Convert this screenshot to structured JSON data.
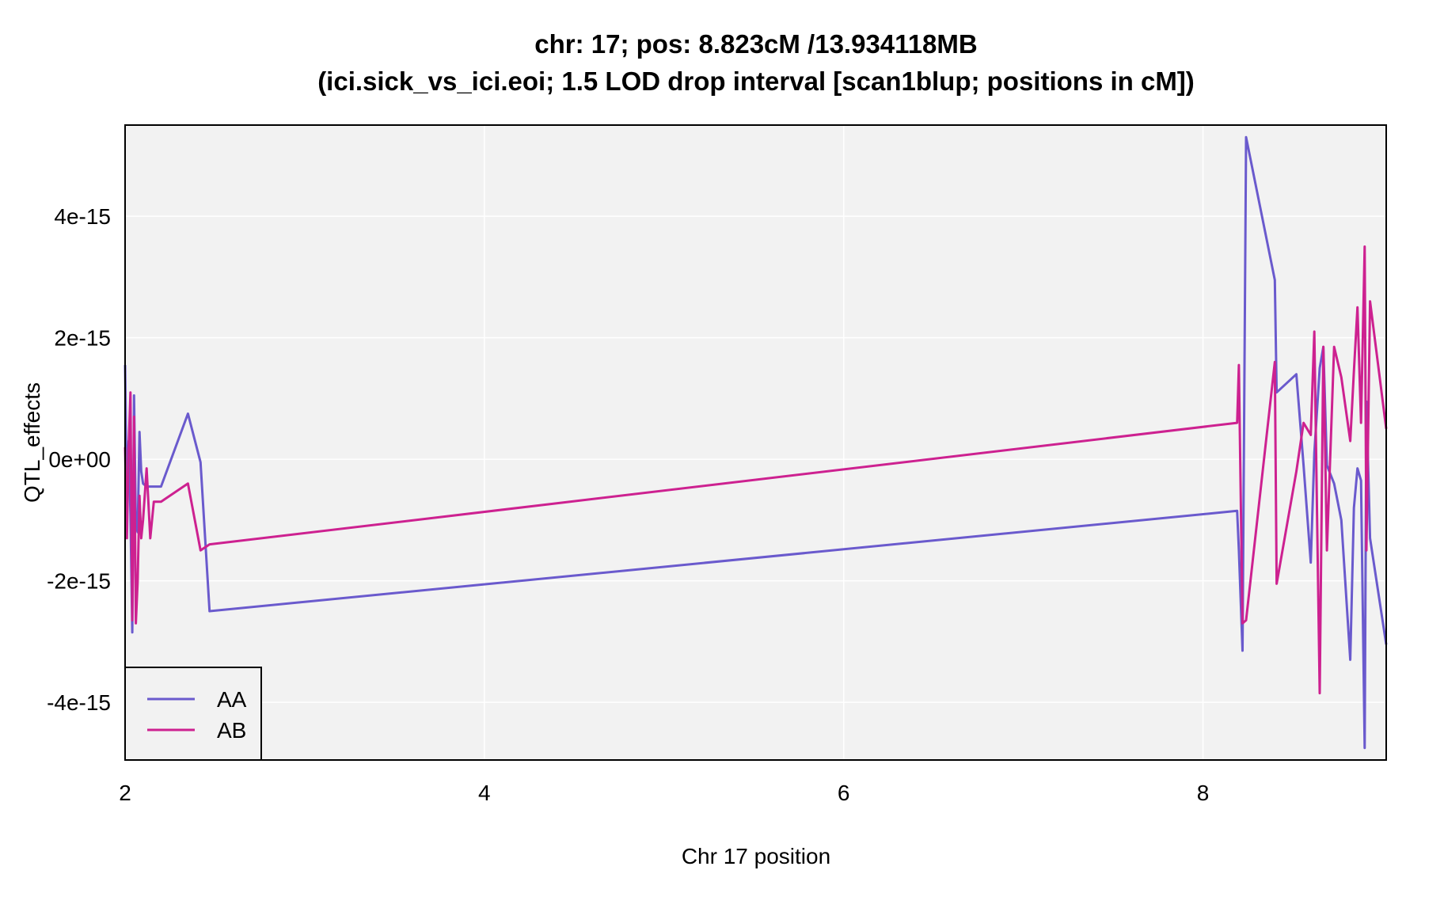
{
  "chart_data": {
    "type": "line",
    "title": "chr: 17; pos: 8.823cM /13.934118MB",
    "subtitle": "(ici.sick_vs_ici.eoi; 1.5 LOD drop interval [scan1blup; positions in cM])",
    "xlabel": "Chr 17 position",
    "ylabel": "QTL_effects",
    "xlim": [
      2.0,
      9.02
    ],
    "ylim": [
      -4.95e-15,
      5.5e-15
    ],
    "x_ticks": [
      2,
      4,
      6,
      8
    ],
    "x_tick_labels": [
      "2",
      "4",
      "6",
      "8"
    ],
    "y_ticks": [
      -4e-15,
      -2e-15,
      0,
      2e-15,
      4e-15
    ],
    "y_tick_labels": [
      "-4e-15",
      "-2e-15",
      "0e+00",
      "2e-15",
      "4e-15"
    ],
    "grid": true,
    "legend_position": "bottom-left",
    "series": [
      {
        "name": "AA",
        "color": "#6a5acd",
        "x": [
          2.0,
          2.01,
          2.02,
          2.03,
          2.04,
          2.05,
          2.06,
          2.07,
          2.08,
          2.09,
          2.1,
          2.12,
          2.14,
          2.16,
          2.2,
          2.35,
          2.42,
          2.47,
          8.19,
          8.2,
          8.22,
          8.24,
          8.4,
          8.41,
          8.52,
          8.56,
          8.6,
          8.62,
          8.65,
          8.67,
          8.69,
          8.73,
          8.77,
          8.82,
          8.84,
          8.86,
          8.88,
          8.9,
          8.91,
          8.93,
          9.02
        ],
        "values": [
          1.55e-15,
          -7e-16,
          3e-16,
          -9e-16,
          -2.85e-15,
          1.05e-15,
          -1.1e-15,
          -1.2e-15,
          4.5e-16,
          -2e-16,
          -4e-16,
          -4.5e-16,
          -4.5e-16,
          -4.5e-16,
          -4.5e-16,
          7.5e-16,
          -5e-17,
          -2.5e-15,
          -8.5e-16,
          -1.5e-15,
          -3.15e-15,
          5.3e-15,
          2.95e-15,
          1.1e-15,
          1.4e-15,
          -1e-16,
          -1.7e-15,
          1e-16,
          1.5e-15,
          1.85e-15,
          -1e-16,
          -4e-16,
          -1e-15,
          -3.3e-15,
          -8e-16,
          -1.5e-16,
          -3.5e-16,
          -4.75e-15,
          9.5e-16,
          -1.3e-15,
          -3.05e-15
        ]
      },
      {
        "name": "AB",
        "color": "#cd2190",
        "x": [
          2.0,
          2.01,
          2.02,
          2.03,
          2.04,
          2.05,
          2.06,
          2.07,
          2.08,
          2.09,
          2.1,
          2.12,
          2.14,
          2.16,
          2.2,
          2.35,
          2.42,
          2.47,
          8.19,
          8.2,
          8.22,
          8.24,
          8.4,
          8.41,
          8.52,
          8.56,
          8.6,
          8.62,
          8.65,
          8.67,
          8.69,
          8.73,
          8.77,
          8.82,
          8.84,
          8.86,
          8.88,
          8.9,
          8.91,
          8.93,
          9.02
        ],
        "values": [
          2e-16,
          -1.3e-15,
          2e-16,
          1.1e-15,
          -2.65e-15,
          7e-16,
          -2.7e-15,
          -2e-15,
          -6e-16,
          -1.3e-15,
          -1e-15,
          -1.5e-16,
          -1.3e-15,
          -7e-16,
          -7e-16,
          -4e-16,
          -1.5e-15,
          -1.4e-15,
          6e-16,
          1.55e-15,
          -2.7e-15,
          -2.65e-15,
          1.6e-15,
          -2.05e-15,
          -2e-16,
          6e-16,
          4e-16,
          2.1e-15,
          -3.85e-15,
          1.85e-15,
          -1.5e-15,
          1.85e-15,
          1.35e-15,
          3e-16,
          1.45e-15,
          2.5e-15,
          6e-16,
          3.5e-15,
          -1.5e-15,
          2.6e-15,
          5e-16
        ]
      }
    ]
  }
}
